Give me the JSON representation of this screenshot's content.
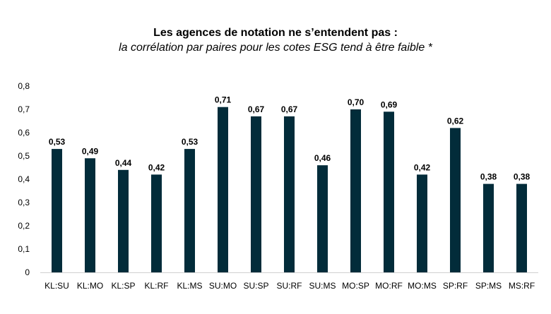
{
  "chart_data": {
    "type": "bar",
    "title": "Les agences de notation ne s’entendent pas :",
    "subtitle": "la corrélation par paires pour les cotes ESG tend à être faible *",
    "categories": [
      "KL:SU",
      "KL:MO",
      "KL:SP",
      "KL:RF",
      "KL:MS",
      "SU:MO",
      "SU:SP",
      "SU:RF",
      "SU:MS",
      "MO:SP",
      "MO:RF",
      "MO:MS",
      "SP:RF",
      "SP:MS",
      "MS:RF"
    ],
    "values": [
      0.53,
      0.49,
      0.44,
      0.42,
      0.53,
      0.71,
      0.67,
      0.67,
      0.46,
      0.7,
      0.69,
      0.42,
      0.62,
      0.38,
      0.38
    ],
    "value_labels": [
      "0,53",
      "0,49",
      "0,44",
      "0,42",
      "0,53",
      "0,71",
      "0,67",
      "0,67",
      "0,46",
      "0,70",
      "0,69",
      "0,42",
      "0,62",
      "0,38",
      "0,38"
    ],
    "yticks": [
      0,
      0.1,
      0.2,
      0.3,
      0.4,
      0.5,
      0.6,
      0.7,
      0.8
    ],
    "ytick_labels": [
      "0",
      "0,1",
      "0,2",
      "0,3",
      "0,4",
      "0,5",
      "0,6",
      "0,7",
      "0,8"
    ],
    "ylim": [
      0,
      0.8
    ],
    "xlabel": "",
    "ylabel": "",
    "grid": false,
    "legend": "none",
    "colors": {
      "bar": "#022c3a",
      "axis": "#d0d0d0"
    }
  }
}
